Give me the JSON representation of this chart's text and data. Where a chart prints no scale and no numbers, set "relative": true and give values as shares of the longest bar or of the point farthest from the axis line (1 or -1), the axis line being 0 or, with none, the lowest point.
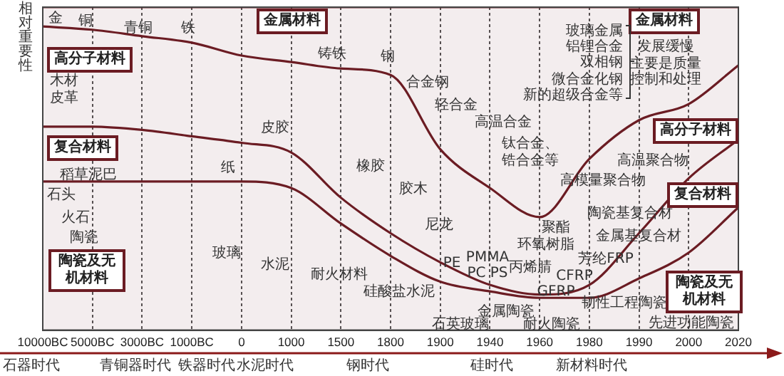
{
  "chart_data": {
    "type": "area",
    "stacked": true,
    "relative": true,
    "grid": "x",
    "legend": false,
    "line_style": "solid",
    "marker": "none",
    "ylabel": "相对重要性",
    "categories": [
      "10000BC",
      "5000BC",
      "3000BC",
      "1000BC",
      "0",
      "1000",
      "1500",
      "1800",
      "1900",
      "1940",
      "1960",
      "1980",
      "1990",
      "2000",
      "2020"
    ],
    "series": [
      {
        "name": "陶瓷及无机材料",
        "color": "#6b1c23",
        "values": [
          0.46,
          0.46,
          0.46,
          0.46,
          0.46,
          0.44,
          0.33,
          0.23,
          0.15,
          0.12,
          0.1,
          0.1,
          0.16,
          0.24,
          0.38
        ]
      },
      {
        "name": "复合材料",
        "color": "#6b1c23",
        "values": [
          0.17,
          0.17,
          0.16,
          0.14,
          0.12,
          0.11,
          0.08,
          0.07,
          0.06,
          0.02,
          0.01,
          0.04,
          0.14,
          0.23,
          0.21
        ]
      },
      {
        "name": "高分子材料",
        "color": "#6b1c23",
        "values": [
          0.31,
          0.3,
          0.29,
          0.29,
          0.27,
          0.28,
          0.4,
          0.49,
          0.35,
          0.3,
          0.24,
          0.39,
          0.35,
          0.23,
          0.23
        ]
      },
      {
        "name": "金属材料",
        "color": "#6b1c23",
        "values": [
          0.06,
          0.07,
          0.09,
          0.11,
          0.15,
          0.17,
          0.19,
          0.21,
          0.44,
          0.56,
          0.65,
          0.47,
          0.35,
          0.3,
          0.18
        ]
      }
    ],
    "annotations": [
      "金",
      "铜",
      "青铜",
      "铁",
      "铸铁",
      "钢",
      "合金钢",
      "轻合金",
      "高温合金",
      "钛合金、",
      "锆合金等",
      "木材",
      "皮革",
      "稻草泥巴",
      "石头",
      "火石",
      "陶瓷",
      "纸",
      "玻璃",
      "皮胶",
      "水泥",
      "耐火材料",
      "橡胶",
      "硅酸盐水泥",
      "胶木",
      "尼龙",
      "PE",
      "PMMA",
      "PC PS",
      "石英玻璃",
      "金属陶瓷",
      "聚酯",
      "环氧树脂",
      "丙烯腈",
      "芳纶FRP",
      "CFRP",
      "GFRP",
      "耐火陶瓷",
      "韧性工程陶瓷",
      "先进功能陶瓷",
      "高模量聚合物",
      "高温聚合物",
      "陶瓷基复合材",
      "金属基复合材",
      "玻璃金属",
      "铝锂合金",
      "双相钢",
      "微合金化钢",
      "新的超级合金等",
      "发展缓慢",
      "主要是质量",
      "控制和处理",
      "石器时代",
      "青铜器时代",
      "铁器时代",
      "水泥时代",
      "钢时代",
      "硅时代",
      "新材料时代"
    ]
  }
}
